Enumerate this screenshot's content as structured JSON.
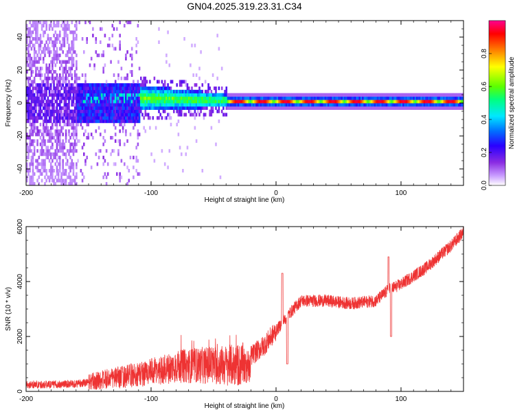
{
  "chart_data": [
    {
      "type": "heatmap",
      "title": "GN04.2025.319.23.31.C34",
      "xlabel": "Height of straight line (km)",
      "ylabel": "Frequency (Hz)",
      "xlim": [
        -200,
        150
      ],
      "ylim": [
        -50,
        50
      ],
      "xticks": [
        "-200",
        "-100",
        "0",
        "100"
      ],
      "xtick_values": [
        -200,
        -100,
        0,
        100
      ],
      "yticks": [
        "-40",
        "-20",
        "0",
        "20",
        "40"
      ],
      "ytick_values": [
        -40,
        -20,
        0,
        20,
        40
      ],
      "colorbar": {
        "label": "Normalized spectral amplitude",
        "range": [
          0.0,
          1.0
        ],
        "ticks": [
          "0.0",
          "0.2",
          "0.4",
          "0.6",
          "0.8"
        ],
        "tick_values": [
          0.0,
          0.2,
          0.4,
          0.6,
          0.8
        ],
        "colors": [
          "#ffffff",
          "#c89bff",
          "#8a2be2",
          "#2a00ff",
          "#0070ff",
          "#00e8ff",
          "#00ff80",
          "#5cff00",
          "#ffff00",
          "#ff8000",
          "#ff0000",
          "#ff0090"
        ]
      },
      "grid": false
    },
    {
      "type": "line",
      "xlabel": "Height of straight line (km)",
      "ylabel": "SNR (10 * v/v)",
      "xlim": [
        -200,
        150
      ],
      "ylim": [
        0,
        6000
      ],
      "xticks": [
        "-200",
        "-100",
        "0",
        "100"
      ],
      "xtick_values": [
        -200,
        -100,
        0,
        100
      ],
      "yticks": [
        "0",
        "2000",
        "4000",
        "6000"
      ],
      "ytick_values": [
        0,
        2000,
        4000,
        6000
      ],
      "line_color": "#ee3333",
      "series": [
        {
          "x": [
            -200,
            -180,
            -160,
            -150,
            -140,
            -120,
            -100,
            -80,
            -60,
            -40,
            -30,
            -25,
            -20,
            -10,
            0,
            10,
            20,
            40,
            60,
            80,
            90,
            100,
            120,
            140,
            150
          ],
          "values": [
            250,
            250,
            280,
            330,
            420,
            550,
            700,
            900,
            950,
            950,
            950,
            1000,
            1300,
            1650,
            2200,
            2800,
            3300,
            3300,
            3200,
            3300,
            3700,
            3900,
            4500,
            5300,
            5800
          ]
        }
      ],
      "grid": false
    }
  ]
}
